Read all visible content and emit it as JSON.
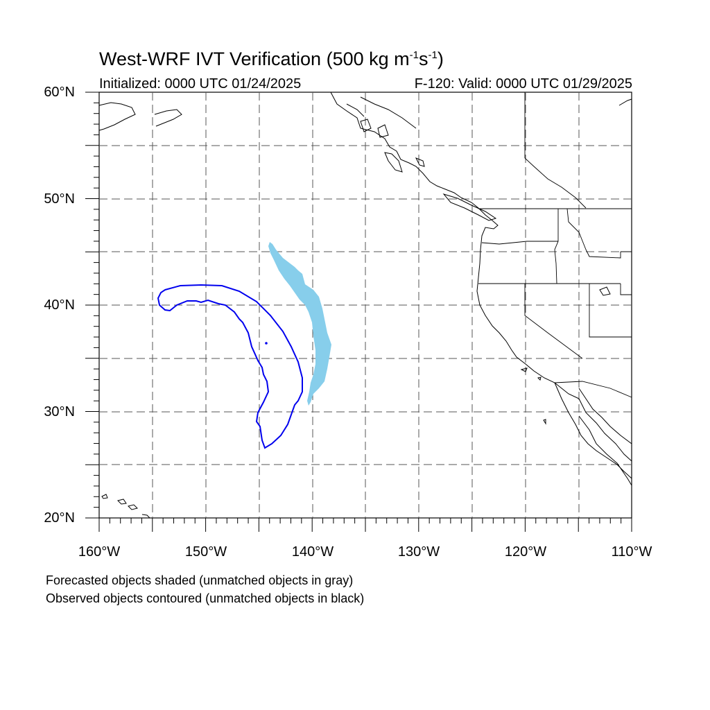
{
  "title_main": "West-WRF IVT Verification (500 kg m",
  "title_sup1": "-1",
  "title_mid": "s",
  "title_sup2": "-1",
  "title_end": ")",
  "subtitle_left": "Initialized: 0000 UTC 01/24/2025",
  "subtitle_right": "F-120: Valid: 0000 UTC 01/29/2025",
  "lat_labels": [
    "60°N",
    "50°N",
    "40°N",
    "30°N",
    "20°N"
  ],
  "lon_labels": [
    "160°W",
    "150°W",
    "140°W",
    "130°W",
    "120°W",
    "110°W"
  ],
  "notes": [
    "Forecasted objects shaded (unmatched objects in gray)",
    "Observed objects contoured (unmatched objects in black)"
  ],
  "map_extent": {
    "lon_min": -160,
    "lon_max": -110,
    "lat_min": 20,
    "lat_max": 60
  },
  "colors": {
    "forecast_fill": "#87ceeb",
    "observed_contour": "#0000ee",
    "coast": "#000000",
    "grid": "#555555"
  }
}
